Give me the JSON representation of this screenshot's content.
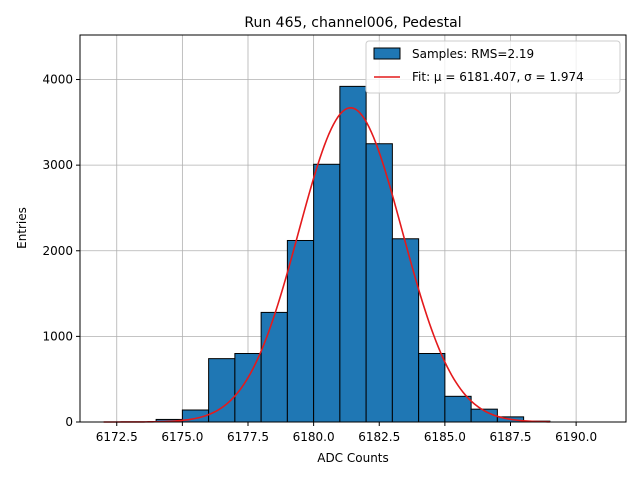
{
  "chart_data": {
    "type": "bar",
    "title": "Run 465, channel006, Pedestal",
    "xlabel": "ADC Counts",
    "ylabel": "Entries",
    "xlim": [
      6171.1,
      6191.9
    ],
    "ylim": [
      0,
      4520
    ],
    "xticks": [
      6172.5,
      6175.0,
      6177.5,
      6180.0,
      6182.5,
      6185.0,
      6187.5,
      6190.0
    ],
    "xtick_labels": [
      "6172.5",
      "6175.0",
      "6177.5",
      "6180.0",
      "6182.5",
      "6185.0",
      "6187.5",
      "6190.0"
    ],
    "yticks": [
      0,
      1000,
      2000,
      3000,
      4000
    ],
    "ytick_labels": [
      "0",
      "1000",
      "2000",
      "3000",
      "4000"
    ],
    "grid": true,
    "legend_position": "top-right",
    "histogram": {
      "name": "Samples: RMS=2.19",
      "color": "#1f77b4",
      "edge_color": "#000000",
      "bins": [
        {
          "x0": 6174.0,
          "x1": 6175.0,
          "count": 30
        },
        {
          "x0": 6175.0,
          "x1": 6176.0,
          "count": 140
        },
        {
          "x0": 6176.0,
          "x1": 6177.0,
          "count": 740
        },
        {
          "x0": 6177.0,
          "x1": 6178.0,
          "count": 800
        },
        {
          "x0": 6178.0,
          "x1": 6179.0,
          "count": 1280
        },
        {
          "x0": 6179.0,
          "x1": 6180.0,
          "count": 2120
        },
        {
          "x0": 6180.0,
          "x1": 6181.0,
          "count": 3010
        },
        {
          "x0": 6181.0,
          "x1": 6182.0,
          "count": 3920
        },
        {
          "x0": 6182.0,
          "x1": 6183.0,
          "count": 3250
        },
        {
          "x0": 6183.0,
          "x1": 6184.0,
          "count": 2140
        },
        {
          "x0": 6184.0,
          "x1": 6185.0,
          "count": 800
        },
        {
          "x0": 6185.0,
          "x1": 6186.0,
          "count": 300
        },
        {
          "x0": 6186.0,
          "x1": 6187.0,
          "count": 150
        },
        {
          "x0": 6187.0,
          "x1": 6188.0,
          "count": 60
        },
        {
          "x0": 6188.0,
          "x1": 6189.0,
          "count": 10
        }
      ]
    },
    "fit": {
      "name": "Fit: μ = 6181.407, σ = 1.974",
      "color": "#e41a1c",
      "mu": 6181.407,
      "sigma": 1.974,
      "amplitude": 3670,
      "x_range": [
        6172.0,
        6189.0
      ]
    }
  }
}
